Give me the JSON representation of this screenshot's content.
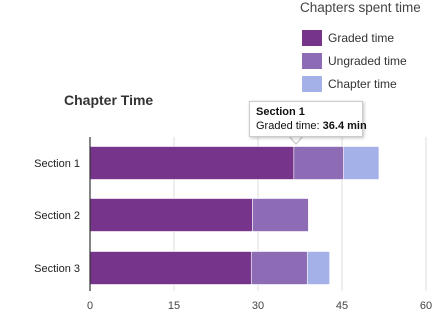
{
  "legend": {
    "title": "Chapters spent time",
    "items": [
      {
        "label": "Graded time",
        "color": "#76348a"
      },
      {
        "label": "Ungraded time",
        "color": "#8e6bb5"
      },
      {
        "label": "Chapter time",
        "color": "#a3b1e8"
      }
    ]
  },
  "tooltip": {
    "title": "Section 1",
    "prefix": "Graded time:",
    "value": "36.4 min"
  },
  "chart_data": {
    "type": "bar",
    "orientation": "horizontal",
    "stacked": true,
    "title": "Chapter Time",
    "categories": [
      "Section 1",
      "Section 2",
      "Section 3"
    ],
    "series": [
      {
        "name": "Graded time",
        "color": "#76348a",
        "values": [
          36.4,
          29.0,
          28.8
        ]
      },
      {
        "name": "Ungraded time",
        "color": "#8e6bb5",
        "values": [
          8.9,
          10.0,
          10.0
        ]
      },
      {
        "name": "Chapter time",
        "color": "#a3b1e8",
        "values": [
          6.3,
          0,
          4.0
        ]
      }
    ],
    "xticks": [
      "0",
      "15",
      "30",
      "45",
      "60"
    ],
    "xlim": [
      0,
      60
    ],
    "grid": true,
    "legend_position": "top-right"
  }
}
